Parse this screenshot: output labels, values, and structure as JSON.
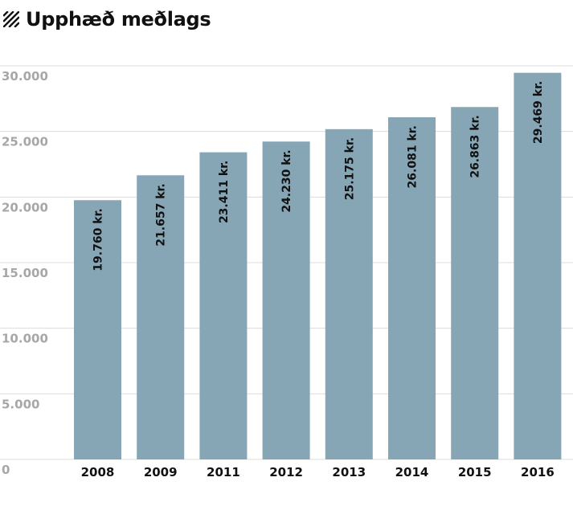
{
  "header": {
    "title": "Upphæð meðlags",
    "icon": "hatch-icon"
  },
  "colors": {
    "bar": "#86a6b6",
    "grid": "#dcdcdc",
    "ytick": "#a7a7a7",
    "text": "#111111"
  },
  "chart_data": {
    "type": "bar",
    "title": "Upphæð meðlags",
    "xlabel": "",
    "ylabel": "",
    "categories": [
      "2008",
      "2009",
      "2011",
      "2012",
      "2013",
      "2014",
      "2015",
      "2016"
    ],
    "values": [
      19760,
      21657,
      23411,
      24230,
      25175,
      26081,
      26863,
      29469
    ],
    "data_labels": [
      "19.760 kr.",
      "21.657 kr.",
      "23.411 kr.",
      "24.230 kr.",
      "25.175 kr.",
      "26.081 kr.",
      "26.863 kr.",
      "29.469 kr."
    ],
    "ylim": [
      0,
      30000
    ],
    "yticks": [
      0,
      5000,
      10000,
      15000,
      20000,
      25000,
      30000
    ],
    "ytick_labels": [
      "0",
      "5.000",
      "10.000",
      "15.000",
      "20.000",
      "25.000",
      "30.000"
    ],
    "grid": true,
    "legend": "none"
  }
}
